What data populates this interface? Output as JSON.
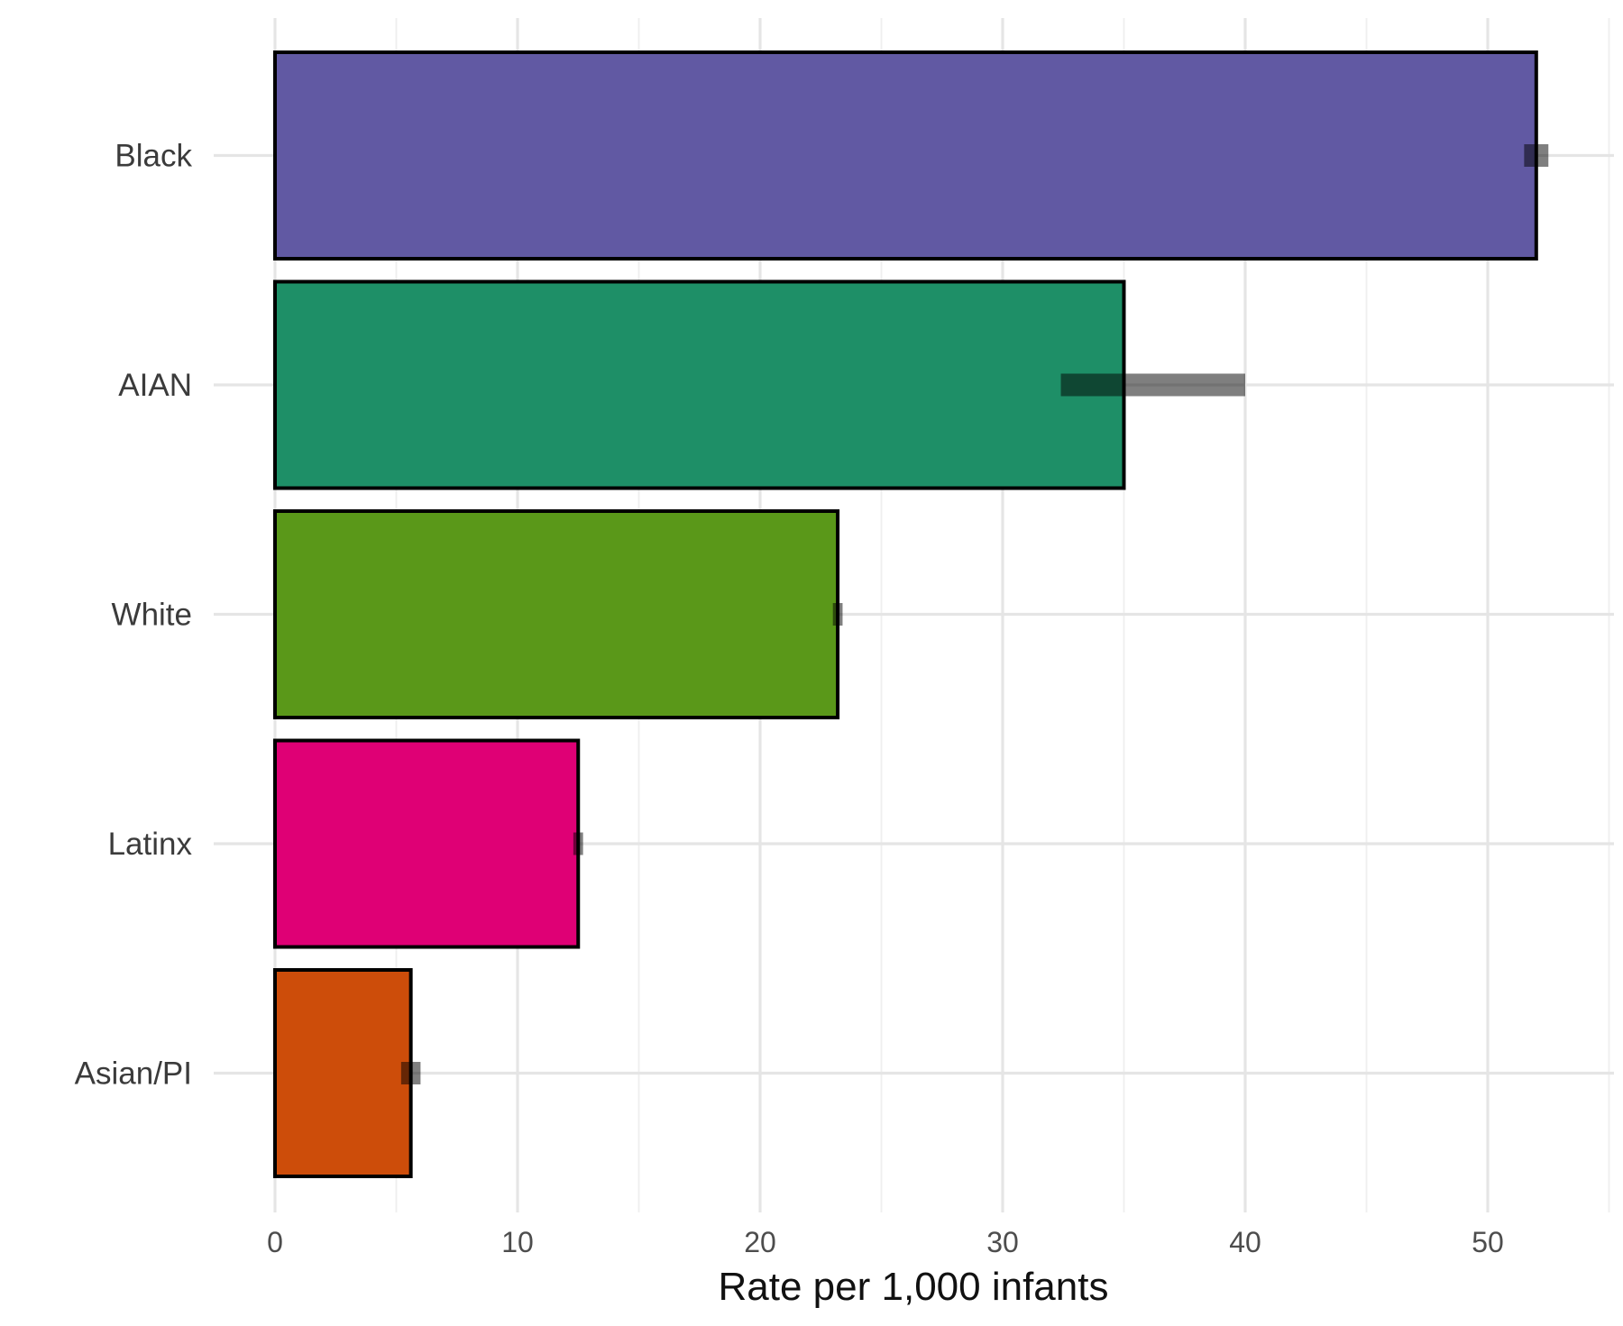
{
  "chart_data": {
    "type": "bar",
    "orientation": "horizontal",
    "title": "",
    "xlabel": "Rate per 1,000 infants",
    "ylabel": "",
    "xlim": [
      0,
      55
    ],
    "x_major_ticks": [
      0,
      10,
      20,
      30,
      40,
      50
    ],
    "x_minor_ticks": [
      5,
      15,
      25,
      35,
      45,
      55
    ],
    "grid": true,
    "legend": "none",
    "categories": [
      "Black",
      "AIAN",
      "White",
      "Latinx",
      "Asian/PI"
    ],
    "values": [
      52.0,
      35.0,
      23.2,
      12.5,
      5.6
    ],
    "intervals": [
      [
        51.5,
        52.5
      ],
      [
        32.4,
        40.0
      ],
      [
        23.0,
        23.4
      ],
      [
        12.3,
        12.7
      ],
      [
        5.2,
        6.0
      ]
    ],
    "colors": [
      "#6159a3",
      "#1e8f67",
      "#5a9819",
      "#df0075",
      "#cd4d0a"
    ]
  }
}
